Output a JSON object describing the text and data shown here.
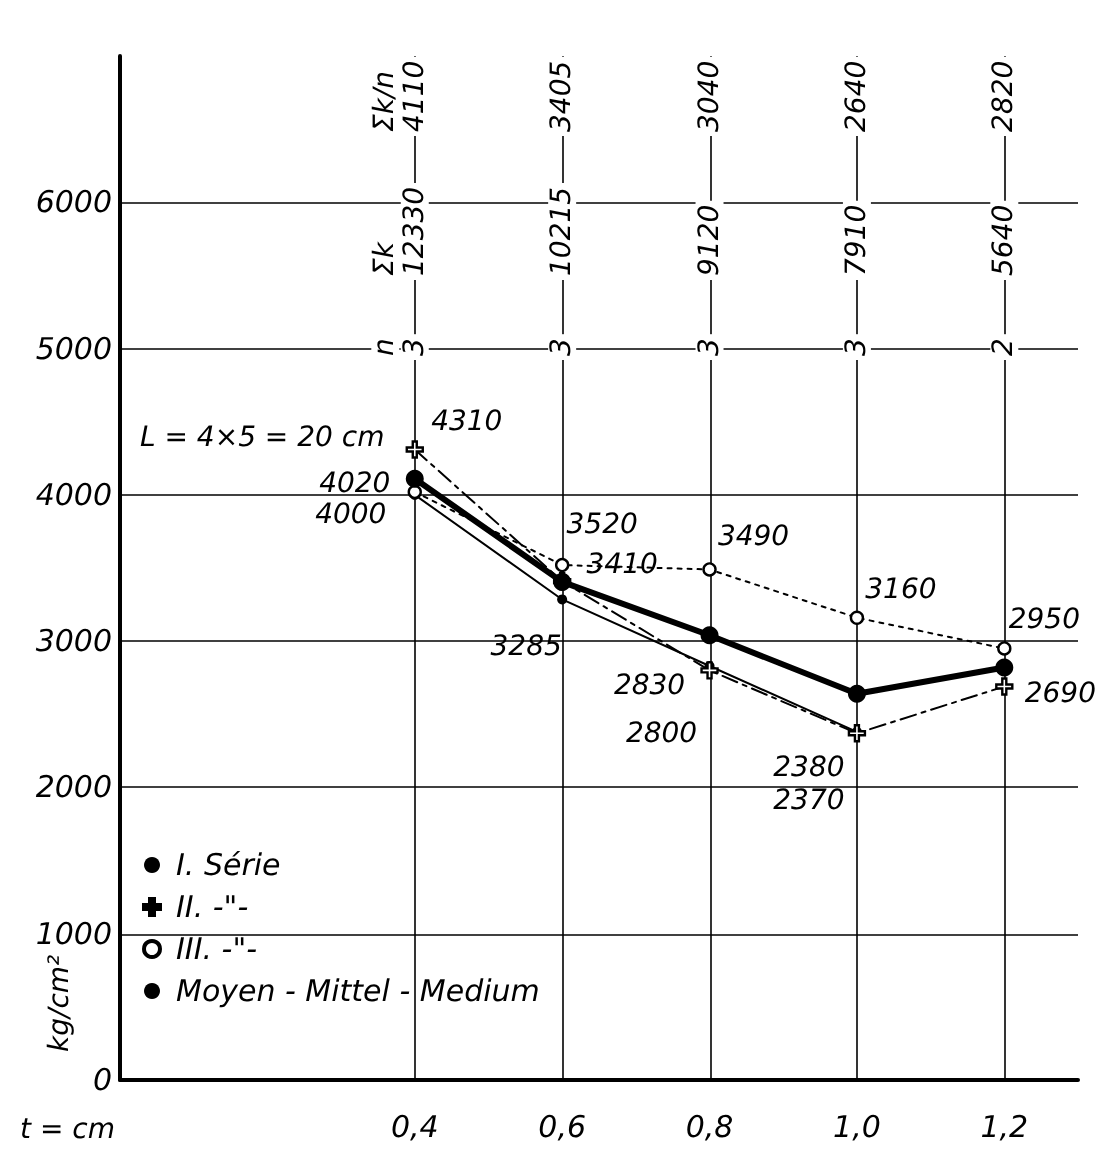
{
  "chart_data": {
    "type": "line",
    "xlabel": "t = cm",
    "ylabel": "kg/cm²",
    "x": [
      0.4,
      0.6,
      0.8,
      1.0,
      1.2
    ],
    "xlim": [
      0,
      1.3
    ],
    "xticks": [
      {
        "value": 0.4,
        "label": "0,4"
      },
      {
        "value": 0.6,
        "label": "0,6"
      },
      {
        "value": 0.8,
        "label": "0,8"
      },
      {
        "value": 1.0,
        "label": "1,0"
      },
      {
        "value": 1.2,
        "label": "1,2"
      }
    ],
    "ylim": [
      0,
      7000
    ],
    "yticks": [
      0,
      1000,
      2000,
      3000,
      4000,
      5000,
      6000
    ],
    "grid": true,
    "legend": "bottom left",
    "series": [
      {
        "name": "I. Série",
        "color": "#000000",
        "marker": "circle",
        "line_style": "solid",
        "values": [
          4000,
          3285,
          2830,
          2380,
          null
        ],
        "value_labels": [
          "4000",
          "3285",
          "2830",
          "2380",
          null
        ]
      },
      {
        "name": "II. -\"-",
        "color": "#000000",
        "marker": "cross",
        "line_style": "dashed",
        "values": [
          4310,
          3410,
          2800,
          2370,
          2690
        ],
        "value_labels": [
          "4310",
          "3410",
          "2800",
          "2370",
          "2690"
        ]
      },
      {
        "name": "III. -\"-",
        "color": "#000000",
        "marker": "circle",
        "line_style": "dotted",
        "values": [
          4020,
          3520,
          3490,
          3160,
          2950
        ],
        "value_labels": [
          "4020",
          "3520",
          "3490",
          "3160",
          "2950"
        ]
      },
      {
        "name": "Moyen - Mittel - Medium",
        "color": "#000000",
        "marker": "circle",
        "line_style": "solid",
        "values": [
          4110,
          3405,
          3040,
          2640,
          2820
        ]
      }
    ],
    "annotations": [
      "L = 4×5 = 20 cm",
      "n",
      "3",
      "3",
      "3",
      "3",
      "2",
      "Σk",
      "12330",
      "10215",
      "9120",
      "7910",
      "5640",
      "Σk/n",
      "4110",
      "3405",
      "3040",
      "2640",
      "2820"
    ]
  }
}
